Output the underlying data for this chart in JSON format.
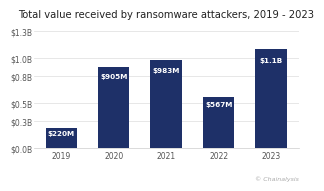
{
  "title": "Total value received by ransomware attackers, 2019 - 2023",
  "categories": [
    "2019",
    "2020",
    "2021",
    "2022",
    "2023"
  ],
  "values": [
    0.22,
    0.905,
    0.983,
    0.567,
    1.1
  ],
  "labels": [
    "$220M",
    "$905M",
    "$983M",
    "$567M",
    "$1.1B"
  ],
  "bar_color": "#1e3068",
  "background_color": "#ffffff",
  "ylabel_ticks": [
    "$0.0B",
    "$0.3B",
    "$0.5B",
    "$0.8B",
    "$1.0B",
    "$1.3B"
  ],
  "ytick_vals": [
    0.0,
    0.3,
    0.5,
    0.8,
    1.0,
    1.3
  ],
  "ylim": [
    0,
    1.38
  ],
  "credit": "© Chainalysis",
  "title_fontsize": 7.2,
  "label_fontsize": 5.2,
  "tick_fontsize": 5.5,
  "credit_fontsize": 4.5
}
